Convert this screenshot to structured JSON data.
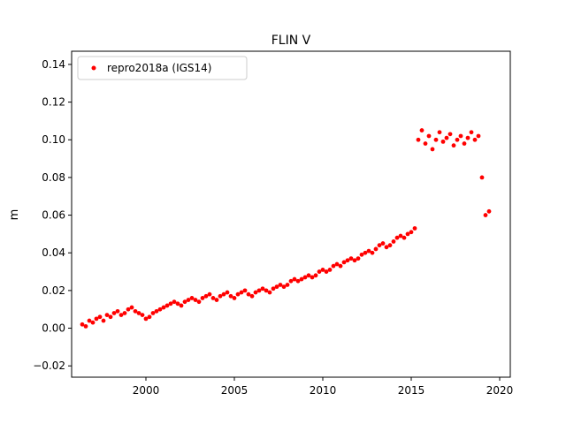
{
  "chart_data": {
    "type": "scatter",
    "title": "FLIN V",
    "xlabel": "",
    "ylabel": "m",
    "xlim": [
      1995.8,
      2020.6
    ],
    "ylim": [
      -0.026,
      0.147
    ],
    "x_ticks": [
      2000,
      2005,
      2010,
      2015,
      2020
    ],
    "x_tick_labels": [
      "2000",
      "2005",
      "2010",
      "2015",
      "2020"
    ],
    "y_ticks": [
      -0.02,
      0.0,
      0.02,
      0.04,
      0.06,
      0.08,
      0.1,
      0.12,
      0.14
    ],
    "y_tick_labels": [
      "−0.02",
      "0.00",
      "0.02",
      "0.04",
      "0.06",
      "0.08",
      "0.10",
      "0.12",
      "0.14"
    ],
    "grid": false,
    "legend_position": "top-left",
    "series": [
      {
        "name": "repro2018a (IGS14)",
        "color": "#ff0000",
        "marker": "dot",
        "x": [
          1996.4,
          1996.6,
          1996.8,
          1997.0,
          1997.2,
          1997.4,
          1997.6,
          1997.8,
          1998.0,
          1998.2,
          1998.4,
          1998.6,
          1998.8,
          1999.0,
          1999.2,
          1999.4,
          1999.6,
          1999.8,
          2000.0,
          2000.2,
          2000.4,
          2000.6,
          2000.8,
          2001.0,
          2001.2,
          2001.4,
          2001.6,
          2001.8,
          2002.0,
          2002.2,
          2002.4,
          2002.6,
          2002.8,
          2003.0,
          2003.2,
          2003.4,
          2003.6,
          2003.8,
          2004.0,
          2004.2,
          2004.4,
          2004.6,
          2004.8,
          2005.0,
          2005.2,
          2005.4,
          2005.6,
          2005.8,
          2006.0,
          2006.2,
          2006.4,
          2006.6,
          2006.8,
          2007.0,
          2007.2,
          2007.4,
          2007.6,
          2007.8,
          2008.0,
          2008.2,
          2008.4,
          2008.6,
          2008.8,
          2009.0,
          2009.2,
          2009.4,
          2009.6,
          2009.8,
          2010.0,
          2010.2,
          2010.4,
          2010.6,
          2010.8,
          2011.0,
          2011.2,
          2011.4,
          2011.6,
          2011.8,
          2012.0,
          2012.2,
          2012.4,
          2012.6,
          2012.8,
          2013.0,
          2013.2,
          2013.4,
          2013.6,
          2013.8,
          2014.0,
          2014.2,
          2014.4,
          2014.6,
          2014.8,
          2015.0,
          2015.2,
          2015.4,
          2015.6,
          2015.8,
          2016.0,
          2016.2,
          2016.4,
          2016.6,
          2016.8,
          2017.0,
          2017.2,
          2017.4,
          2017.6,
          2017.8,
          2018.0,
          2018.2,
          2018.4,
          2018.6,
          2018.8,
          2019.0,
          2019.2,
          2019.4
        ],
        "y": [
          0.002,
          0.001,
          0.004,
          0.003,
          0.005,
          0.006,
          0.004,
          0.007,
          0.006,
          0.008,
          0.009,
          0.007,
          0.008,
          0.01,
          0.011,
          0.009,
          0.008,
          0.007,
          0.005,
          0.006,
          0.008,
          0.009,
          0.01,
          0.011,
          0.012,
          0.013,
          0.014,
          0.013,
          0.012,
          0.014,
          0.015,
          0.016,
          0.015,
          0.014,
          0.016,
          0.017,
          0.018,
          0.016,
          0.015,
          0.017,
          0.018,
          0.019,
          0.017,
          0.016,
          0.018,
          0.019,
          0.02,
          0.018,
          0.017,
          0.019,
          0.02,
          0.021,
          0.02,
          0.019,
          0.021,
          0.022,
          0.023,
          0.022,
          0.023,
          0.025,
          0.026,
          0.025,
          0.026,
          0.027,
          0.028,
          0.027,
          0.028,
          0.03,
          0.031,
          0.03,
          0.031,
          0.033,
          0.034,
          0.033,
          0.035,
          0.036,
          0.037,
          0.036,
          0.037,
          0.039,
          0.04,
          0.041,
          0.04,
          0.042,
          0.044,
          0.045,
          0.043,
          0.044,
          0.046,
          0.048,
          0.049,
          0.048,
          0.05,
          0.051,
          0.053,
          0.1,
          0.105,
          0.098,
          0.102,
          0.095,
          0.1,
          0.104,
          0.099,
          0.101,
          0.103,
          0.097,
          0.1,
          0.102,
          0.098,
          0.101,
          0.104,
          0.1,
          0.102,
          0.08,
          0.06,
          0.062
        ],
        "band_note_shown": false
      }
    ]
  }
}
